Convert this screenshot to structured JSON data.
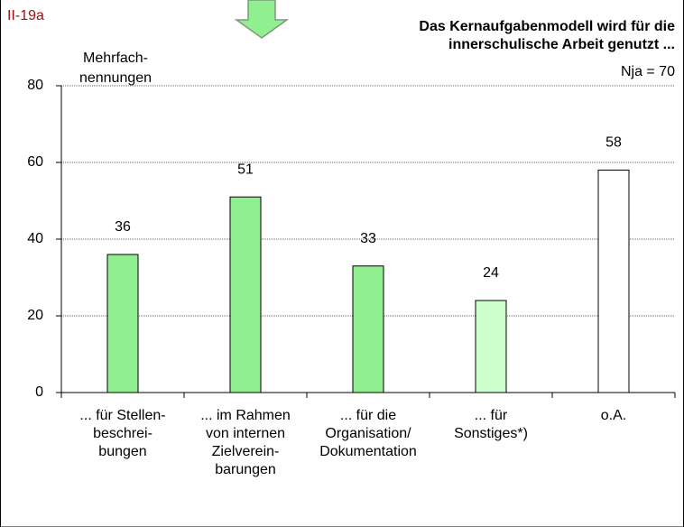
{
  "figure_label": "II-19a",
  "chart_data": {
    "type": "bar",
    "title": [
      "Das Kernaufgabenmodell wird für die",
      "innerschulische Arbeit genutzt ..."
    ],
    "annotation": "Nja = 70",
    "y_label": [
      "Mehrfach-",
      "nennungen"
    ],
    "categories": [
      [
        "... für Stellen-",
        "beschrei-",
        "bungen"
      ],
      [
        "... im Rahmen",
        "von internen",
        "Zielverein-",
        "barungen"
      ],
      [
        "... für die",
        "Organisation/",
        "Dokumentation"
      ],
      [
        "... für",
        "Sonstiges*)"
      ],
      [
        "o.A."
      ]
    ],
    "values": [
      36,
      51,
      33,
      24,
      58
    ],
    "colors": [
      "#90f090",
      "#90f090",
      "#90f090",
      "#ccffcc",
      "#ffffff"
    ],
    "ylim": [
      0,
      80
    ],
    "yticks": [
      0,
      20,
      40,
      60,
      80
    ],
    "grid": true
  }
}
